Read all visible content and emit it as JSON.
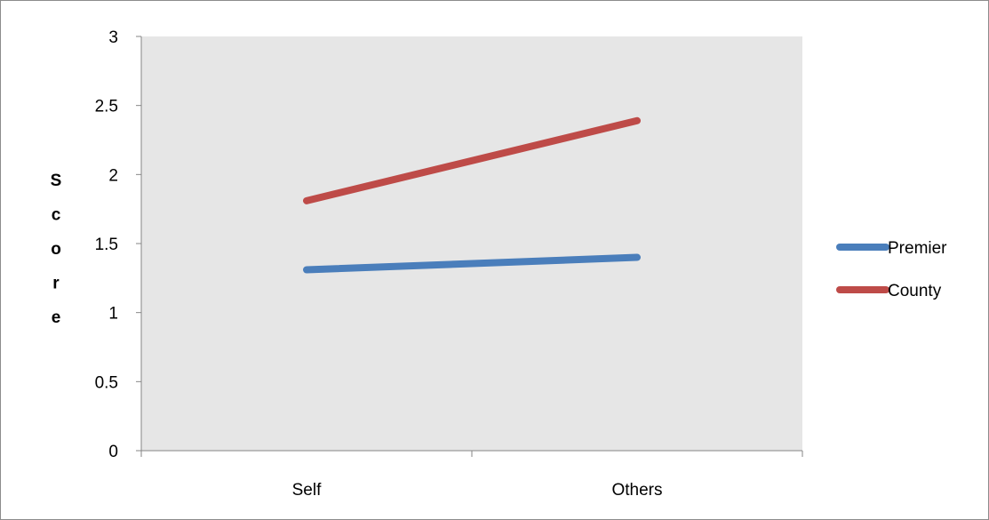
{
  "chart_data": {
    "type": "line",
    "title": "",
    "xlabel": "",
    "ylabel": "Score",
    "categories": [
      "Self",
      "Others"
    ],
    "ylim": [
      0,
      3
    ],
    "yticks": [
      0,
      0.5,
      1,
      1.5,
      2,
      2.5,
      3
    ],
    "ytick_labels": [
      "0",
      "0.5",
      "1",
      "1.5",
      "2",
      "2.5",
      "3"
    ],
    "grid": false,
    "legend_position": "right",
    "plot_background": "#e6e6e6",
    "series": [
      {
        "name": "Premier",
        "values": [
          1.31,
          1.4
        ],
        "color": "#4a7ebb"
      },
      {
        "name": "County",
        "values": [
          1.81,
          2.39
        ],
        "color": "#be4b48"
      }
    ]
  }
}
